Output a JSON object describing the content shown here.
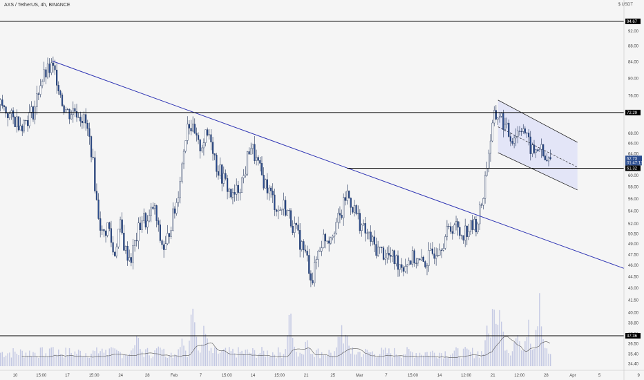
{
  "header": {
    "symbol_line": "AXS / TetherUS, 4h, BINANCE",
    "currency": "$ USDT"
  },
  "colors": {
    "background": "#f5f5f5",
    "candle_up": "#ffffff",
    "candle_down": "#2b4c8e",
    "candle_outline": "#1c2f57",
    "trendline": "#2f35b4",
    "horizontal_level": "#000000",
    "channel_fill": "#dcdff7",
    "volume_bar": "#c3c8e3",
    "volume_ma": "#555555",
    "current_price_tag": "#2b4c8e",
    "level_tag": "#000000"
  },
  "chart_data": {
    "type": "candlestick",
    "ylim": [
      33.8,
      99.2
    ],
    "y_scale": "log",
    "grid": false,
    "y_ticks": [
      "92.00",
      "88.00",
      "84.00",
      "80.00",
      "76.00",
      "72.00",
      "68.00",
      "66.00",
      "64.00",
      "62.00",
      "60.00",
      "58.00",
      "56.00",
      "54.00",
      "52.00",
      "50.50",
      "49.00",
      "47.50",
      "46.00",
      "44.50",
      "43.00",
      "41.50",
      "40.00",
      "38.80",
      "37.50",
      "36.50",
      "35.40",
      "34.40"
    ],
    "x_ticks": [
      {
        "label": "10",
        "x": 0.0
      },
      {
        "label": "15:00",
        "x": 4.6
      },
      {
        "label": "17",
        "x": 9.2
      },
      {
        "label": "15:00",
        "x": 13.9
      },
      {
        "label": "24",
        "x": 18.6
      },
      {
        "label": "28",
        "x": 23.3
      },
      {
        "label": "Feb",
        "x": 28.0
      },
      {
        "label": "7",
        "x": 32.7
      },
      {
        "label": "15:00",
        "x": 37.3
      },
      {
        "label": "14",
        "x": 41.9
      },
      {
        "label": "15:00",
        "x": 46.6
      },
      {
        "label": "21",
        "x": 51.3
      },
      {
        "label": "25",
        "x": 56.0
      },
      {
        "label": "Mar",
        "x": 60.7
      },
      {
        "label": "7",
        "x": 65.4
      },
      {
        "label": "15:00",
        "x": 70.1
      },
      {
        "label": "14",
        "x": 74.8
      },
      {
        "label": "12:00",
        "x": 79.5
      },
      {
        "label": "21",
        "x": 84.2
      },
      {
        "label": "12:00",
        "x": 88.9
      },
      {
        "label": "28",
        "x": 93.6
      },
      {
        "label": "Apr",
        "x": 98.3
      },
      {
        "label": "5",
        "x": 103.0
      },
      {
        "label": "9",
        "x": 109.9
      }
    ],
    "close_path": [
      [
        0,
        74
      ],
      [
        2,
        71
      ],
      [
        4,
        70
      ],
      [
        6,
        73
      ],
      [
        7,
        79
      ],
      [
        8,
        81
      ],
      [
        9,
        82.5
      ],
      [
        10,
        80
      ],
      [
        11,
        74
      ],
      [
        12,
        72
      ],
      [
        13,
        73
      ],
      [
        14,
        72
      ],
      [
        15,
        70
      ],
      [
        16,
        65
      ],
      [
        17,
        55
      ],
      [
        18,
        50
      ],
      [
        19,
        52
      ],
      [
        20,
        47
      ],
      [
        21,
        52
      ],
      [
        22,
        48
      ],
      [
        23,
        47
      ],
      [
        24,
        50
      ],
      [
        25,
        53
      ],
      [
        26,
        52
      ],
      [
        27,
        55
      ],
      [
        28,
        50
      ],
      [
        29,
        48
      ],
      [
        30,
        52
      ],
      [
        31,
        55
      ],
      [
        32,
        62
      ],
      [
        33,
        71
      ],
      [
        34,
        68
      ],
      [
        35,
        65
      ],
      [
        36,
        67
      ],
      [
        37,
        68
      ],
      [
        38,
        62
      ],
      [
        39,
        60
      ],
      [
        40,
        58
      ],
      [
        41,
        56
      ],
      [
        42,
        58
      ],
      [
        43,
        60
      ],
      [
        44,
        66
      ],
      [
        45,
        63
      ],
      [
        46,
        60
      ],
      [
        47,
        58
      ],
      [
        48,
        56
      ],
      [
        49,
        54
      ],
      [
        50,
        55
      ],
      [
        51,
        53
      ],
      [
        52,
        51
      ],
      [
        53,
        49
      ],
      [
        54,
        47
      ],
      [
        55,
        44
      ],
      [
        56,
        48
      ],
      [
        57,
        50
      ],
      [
        58,
        50
      ],
      [
        59,
        52
      ],
      [
        60,
        53
      ],
      [
        61,
        57
      ],
      [
        62,
        55
      ],
      [
        63,
        53
      ],
      [
        64,
        51
      ],
      [
        65,
        50
      ],
      [
        66,
        48.5
      ],
      [
        67,
        48
      ],
      [
        68,
        47.5
      ],
      [
        69,
        47
      ],
      [
        70,
        46.5
      ],
      [
        71,
        46
      ],
      [
        72,
        46.8
      ],
      [
        73,
        47
      ],
      [
        74,
        46.2
      ],
      [
        75,
        46.5
      ],
      [
        76,
        47.5
      ],
      [
        77,
        48.5
      ],
      [
        78,
        49.5
      ],
      [
        79,
        51
      ],
      [
        80,
        52
      ],
      [
        81,
        50.5
      ],
      [
        82,
        51
      ],
      [
        83,
        51.5
      ],
      [
        84,
        52
      ],
      [
        85,
        56
      ],
      [
        86,
        64
      ],
      [
        87,
        71
      ],
      [
        88,
        72
      ],
      [
        89,
        69
      ],
      [
        90,
        67
      ],
      [
        91,
        68
      ],
      [
        92,
        70
      ],
      [
        93,
        66
      ],
      [
        94,
        64
      ],
      [
        95,
        65.5
      ],
      [
        96,
        62.5
      ],
      [
        97,
        62.7
      ]
    ],
    "current_price": 62.73,
    "current_price_countdown": "01:47:12",
    "levels": [
      {
        "name": "resistance-high",
        "value": 94.67,
        "label": "94.67"
      },
      {
        "name": "resistance-mid",
        "value": 72.29,
        "label": "72.29"
      },
      {
        "name": "support-upper",
        "value": 61.32,
        "label": "61.32"
      },
      {
        "name": "support-lower",
        "value": 37.36,
        "label": "37.36"
      }
    ],
    "support_upper_start_x": 61.2,
    "trendline": {
      "x1": 9.2,
      "y1": 84.2,
      "x2": 110,
      "y2": 45.6
    },
    "channel": {
      "x1": 87.8,
      "x2": 101.8,
      "upper_start": 75,
      "upper_end": 66.2,
      "lower_start": 64.2,
      "lower_end": 57.5,
      "mid_start": 69.3,
      "mid_end": 61.5
    },
    "volume_peaks": [
      [
        9,
        0.3
      ],
      [
        18,
        0.25
      ],
      [
        24,
        0.4
      ],
      [
        28,
        0.35
      ],
      [
        32,
        0.45
      ],
      [
        34,
        0.9
      ],
      [
        36,
        0.5
      ],
      [
        51,
        0.7
      ],
      [
        54,
        0.35
      ],
      [
        60,
        0.55
      ],
      [
        61,
        0.4
      ],
      [
        86,
        0.6
      ],
      [
        87,
        0.95
      ],
      [
        88,
        0.8
      ],
      [
        91,
        0.5
      ],
      [
        93,
        0.6
      ],
      [
        95,
        0.85
      ]
    ]
  }
}
